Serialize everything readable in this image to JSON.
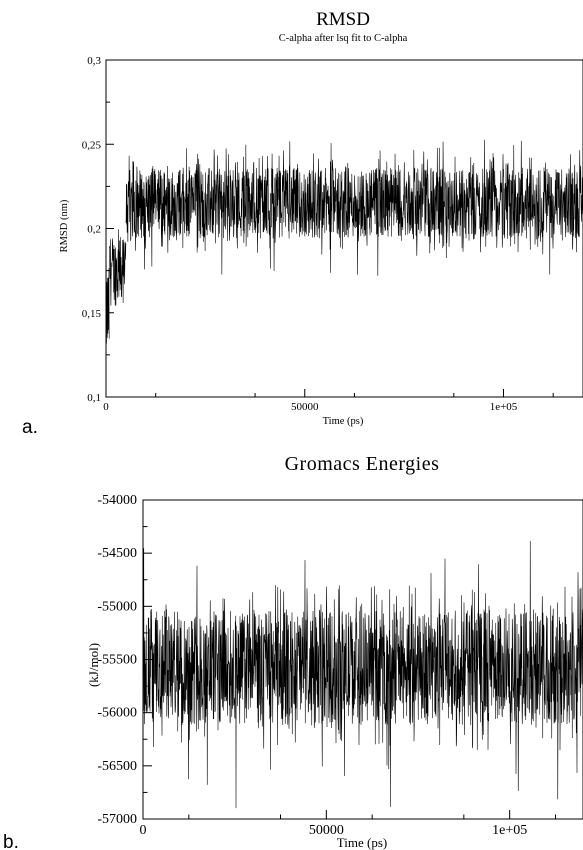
{
  "panels": {
    "a_label": "a.",
    "b_label": "b."
  },
  "chart_data": [
    {
      "type": "line",
      "title": "RMSD",
      "subtitle": "C-alpha after lsq fit to C-alpha",
      "xlabel": "Time (ps)",
      "ylabel": "RMSD (nm)",
      "xlim": [
        0,
        120000
      ],
      "ylim": [
        0.1,
        0.3
      ],
      "x_ticks": [
        0,
        50000,
        100000
      ],
      "x_tick_labels": [
        "0",
        "50000",
        "1e+05"
      ],
      "y_ticks": [
        0.1,
        0.15,
        0.2,
        0.25,
        0.3
      ],
      "y_tick_labels": [
        "0,1",
        "0,15",
        "0,2",
        "0,25",
        "0,3"
      ],
      "series": [
        {
          "color": "#000000",
          "segments": [
            {
              "x_start": 0,
              "x_end": 800,
              "low": 0.11,
              "high": 0.19
            },
            {
              "x_start": 800,
              "x_end": 5000,
              "low": 0.145,
              "high": 0.205
            },
            {
              "x_start": 5000,
              "x_end": 120000,
              "low": 0.185,
              "high": 0.245
            }
          ],
          "spike_low": 0.17,
          "spike_high": 0.253
        }
      ]
    },
    {
      "type": "line",
      "title": "Gromacs Energies",
      "xlabel": "Time (ps)",
      "ylabel": "(kJ/mol)",
      "xlim": [
        0,
        120000
      ],
      "ylim": [
        -57000,
        -54000
      ],
      "x_ticks": [
        0,
        50000,
        100000
      ],
      "x_tick_labels": [
        "0",
        "50000",
        "1e+05"
      ],
      "y_ticks": [
        -57000,
        -56500,
        -56000,
        -55500,
        -55000,
        -54500,
        -54000
      ],
      "y_tick_labels": [
        "-57000",
        "-56500",
        "-56000",
        "-55500",
        "-55000",
        "-54500",
        "-54000"
      ],
      "series": [
        {
          "color": "#000000",
          "segments": [
            {
              "x_start": 0,
              "x_end": 120000,
              "low": -56350,
              "high": -54800
            }
          ],
          "spike_low": -56900,
          "spike_high": -54300
        }
      ]
    }
  ]
}
